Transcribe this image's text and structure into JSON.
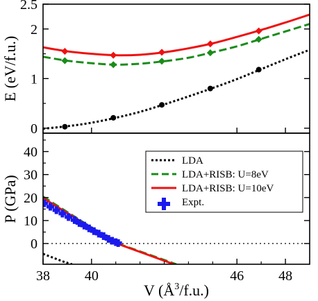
{
  "chart_data": [
    {
      "type": "line",
      "panel": "top",
      "ylabel": "E (eV/f.u.)",
      "xlim": [
        38,
        49
      ],
      "ylim": [
        -0.1,
        2.5
      ],
      "y_ticks": [
        "0",
        "1",
        "2",
        "2.5"
      ],
      "y_tick_values": [
        0,
        1,
        2,
        2.5
      ],
      "series": [
        {
          "name": "LDA",
          "color": "#000000",
          "style": "dotted",
          "marker": "circle",
          "points_x": [
            38.9,
            40.9,
            42.9,
            44.9,
            46.9
          ],
          "points_y": [
            0.03,
            0.21,
            0.47,
            0.8,
            1.18
          ],
          "curve": [
            [
              38,
              -0.01
            ],
            [
              39,
              0.04
            ],
            [
              40,
              0.11
            ],
            [
              41,
              0.21
            ],
            [
              42,
              0.33
            ],
            [
              43,
              0.48
            ],
            [
              44,
              0.64
            ],
            [
              45,
              0.81
            ],
            [
              46,
              0.99
            ],
            [
              47,
              1.19
            ],
            [
              48,
              1.39
            ],
            [
              49,
              1.58
            ]
          ]
        },
        {
          "name": "LDA+RISB: U=8eV",
          "color": "#1a8c1a",
          "style": "dashed",
          "marker": "diamond",
          "points_x": [
            38.9,
            40.9,
            42.9,
            44.9,
            46.9
          ],
          "points_y": [
            1.36,
            1.28,
            1.35,
            1.52,
            1.79
          ],
          "curve": [
            [
              38,
              1.44
            ],
            [
              39,
              1.36
            ],
            [
              40,
              1.31
            ],
            [
              41,
              1.28
            ],
            [
              42,
              1.3
            ],
            [
              43,
              1.35
            ],
            [
              44,
              1.42
            ],
            [
              45,
              1.53
            ],
            [
              46,
              1.65
            ],
            [
              47,
              1.8
            ],
            [
              48,
              1.95
            ],
            [
              49,
              2.1
            ]
          ]
        },
        {
          "name": "LDA+RISB: U=10eV",
          "color": "#ee1111",
          "style": "solid",
          "marker": "diamond",
          "points_x": [
            38.9,
            40.9,
            42.9,
            44.9,
            46.9
          ],
          "points_y": [
            1.55,
            1.47,
            1.53,
            1.7,
            1.96
          ],
          "curve": [
            [
              38,
              1.63
            ],
            [
              39,
              1.55
            ],
            [
              40,
              1.5
            ],
            [
              41,
              1.47
            ],
            [
              42,
              1.48
            ],
            [
              43,
              1.53
            ],
            [
              44,
              1.61
            ],
            [
              45,
              1.71
            ],
            [
              46,
              1.84
            ],
            [
              47,
              1.98
            ],
            [
              48,
              2.13
            ],
            [
              49,
              2.29
            ]
          ]
        }
      ]
    },
    {
      "type": "line",
      "panel": "bottom",
      "xlabel": "V (Å³/f.u.)",
      "xlabel_main": "V (",
      "xlabel_angstrom": "Å",
      "xlabel_sup": "3",
      "xlabel_tail": "/f.u.)",
      "ylabel": "P (GPa)",
      "xlim": [
        38,
        49
      ],
      "ylim": [
        -9,
        48
      ],
      "x_ticks": [
        "38",
        "40",
        "46",
        "48"
      ],
      "x_tick_values": [
        38,
        40,
        46,
        48
      ],
      "y_ticks": [
        "0",
        "10",
        "20",
        "30",
        "40"
      ],
      "y_tick_values": [
        0,
        10,
        20,
        30,
        40
      ],
      "zero_line": true,
      "legend_position": "upper-right",
      "series": [
        {
          "name": "LDA",
          "color": "#000000",
          "style": "dotted",
          "curve": [
            [
              38,
              -4.5
            ],
            [
              39,
              -8.5
            ],
            [
              39.2,
              -9
            ]
          ]
        },
        {
          "name": "LDA+RISB: U=8eV",
          "color": "#1a8c1a",
          "style": "dashed",
          "curve": [
            [
              38,
              20.4
            ],
            [
              41,
              0.3
            ],
            [
              43.5,
              -9
            ]
          ]
        },
        {
          "name": "LDA+RISB: U=10eV",
          "color": "#ee1111",
          "style": "solid",
          "curve": [
            [
              38,
              19.8
            ],
            [
              41,
              0.2
            ],
            [
              43.4,
              -9
            ]
          ]
        },
        {
          "name": "Expt.",
          "color": "#1a1aee",
          "style": "none",
          "marker": "plus",
          "points_x": [
            38.05,
            38.3,
            38.55,
            38.8,
            39.05,
            39.3,
            39.5,
            39.7,
            39.9,
            40.1,
            40.3,
            40.5,
            40.7,
            40.85,
            41.0,
            41.1
          ],
          "points_y": [
            17.5,
            16.0,
            14.5,
            13.0,
            11.5,
            10.2,
            8.9,
            7.8,
            6.6,
            5.4,
            4.3,
            3.2,
            2.0,
            1.2,
            0.6,
            0.2
          ]
        }
      ]
    }
  ]
}
